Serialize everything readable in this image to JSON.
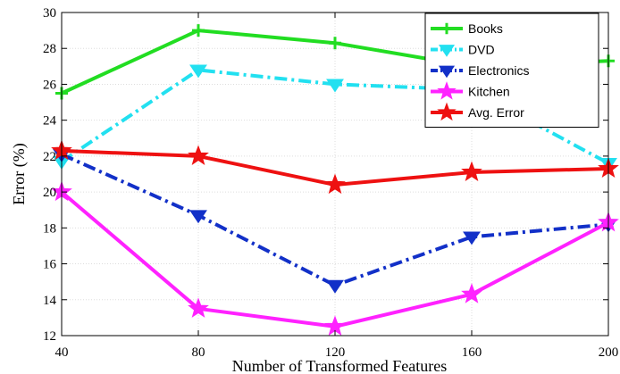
{
  "chart_data": {
    "type": "line",
    "title": "",
    "xlabel": "Number of Transformed Features",
    "ylabel": "Error (%)",
    "x": [
      40,
      80,
      120,
      160,
      200
    ],
    "xlim": [
      40,
      200
    ],
    "ylim": [
      12,
      30
    ],
    "xticks": [
      "40",
      "80",
      "120",
      "160",
      "200"
    ],
    "yticks": [
      "12",
      "14",
      "16",
      "18",
      "20",
      "22",
      "24",
      "26",
      "28",
      "30"
    ],
    "grid": true,
    "legend": "top-right",
    "series": [
      {
        "name": "Books",
        "values": [
          25.5,
          29.0,
          28.3,
          27.0,
          27.3
        ],
        "color": "#22dd22",
        "line": "solid",
        "marker": "plus"
      },
      {
        "name": "DVD",
        "values": [
          21.7,
          26.8,
          26.0,
          25.7,
          21.6
        ],
        "color": "#22e0f0",
        "line": "dashdot",
        "marker": "triangle-down"
      },
      {
        "name": "Electronics",
        "values": [
          22.1,
          18.7,
          14.8,
          17.5,
          18.2
        ],
        "color": "#1230c8",
        "line": "dashdot",
        "marker": "triangle-down"
      },
      {
        "name": "Kitchen",
        "values": [
          20.0,
          13.5,
          12.5,
          14.3,
          18.3
        ],
        "color": "#ff22ff",
        "line": "solid",
        "marker": "star"
      },
      {
        "name": "Avg. Error",
        "values": [
          22.3,
          22.0,
          20.4,
          21.1,
          21.3
        ],
        "color": "#ee1111",
        "line": "solid",
        "marker": "star"
      }
    ]
  }
}
